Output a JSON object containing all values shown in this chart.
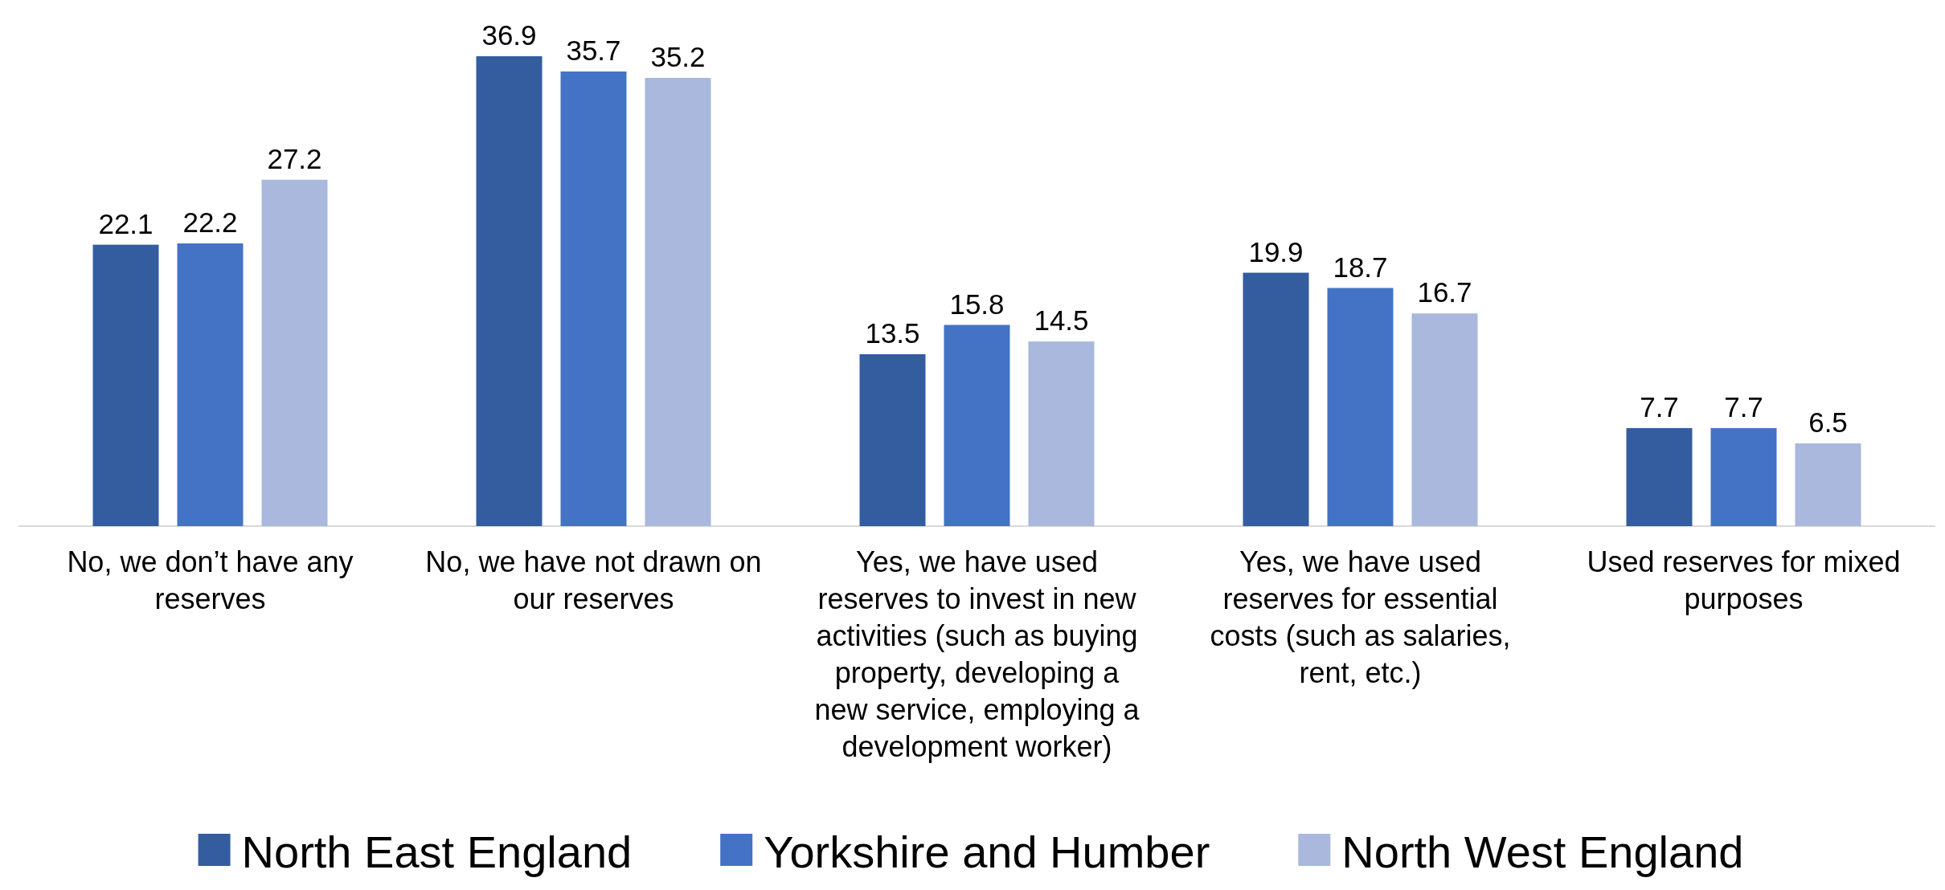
{
  "chart_data": {
    "type": "bar",
    "categories": [
      "No, we don’t have any reserves",
      "No, we have not drawn on our reserves",
      "Yes, we have used reserves to invest in new activities (such as buying property, developing a new service, employing a development worker)",
      "Yes, we have used reserves for essential costs (such as salaries, rent, etc.)",
      "Used reserves for mixed purposes"
    ],
    "series": [
      {
        "name": "North East England",
        "color": "#345da0",
        "values": [
          22.1,
          36.9,
          13.5,
          19.9,
          7.7
        ]
      },
      {
        "name": "Yorkshire and Humber",
        "color": "#4473c5",
        "values": [
          22.2,
          35.7,
          15.8,
          18.7,
          7.7
        ]
      },
      {
        "name": "North West England",
        "color": "#a9b8dc",
        "values": [
          27.2,
          35.2,
          14.5,
          16.7,
          6.5
        ]
      }
    ],
    "data_labels": true,
    "legend": "bottom"
  }
}
